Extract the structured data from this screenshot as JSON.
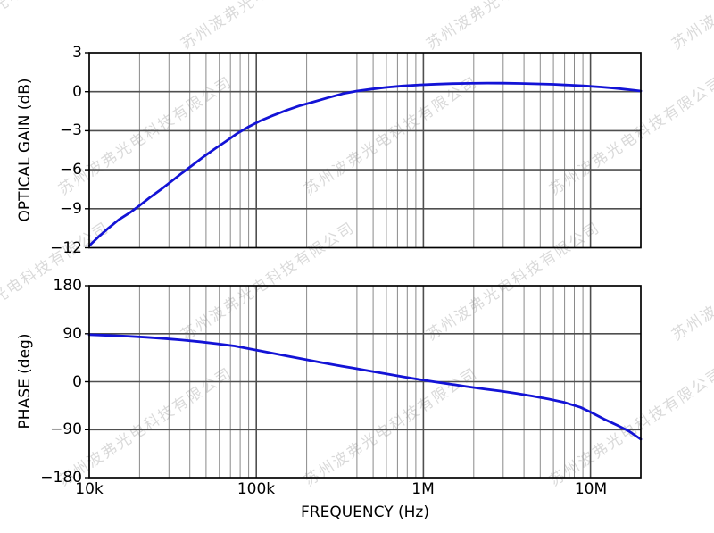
{
  "watermark": {
    "text": "苏州波弗光电科技有限公司",
    "color": "rgba(0,0,0,0.15)"
  },
  "colors": {
    "curve": "#1313d6",
    "grid_major": "#4f4f4f",
    "grid_minor": "#8a8a8a",
    "frame": "#000000",
    "background": "#ffffff"
  },
  "chart_data": [
    {
      "type": "line",
      "title": "",
      "xlabel": "FREQUENCY (Hz)",
      "ylabel": "OPTICAL GAIN (dB)",
      "x_scale": "log",
      "xlim": [
        10000,
        20000000
      ],
      "ylim": [
        -12,
        3
      ],
      "grid": true,
      "legend": "none",
      "yticks": {
        "values": [
          3,
          0,
          -3,
          -6,
          -9,
          -12
        ],
        "labels": [
          "3",
          "0",
          "−3",
          "−6",
          "−9",
          "−12"
        ]
      },
      "xticks": {
        "values": [
          10000,
          100000,
          1000000,
          10000000
        ],
        "labels": [
          "10k",
          "100k",
          "1M",
          "10M"
        ]
      },
      "series": [
        {
          "name": "optical-gain",
          "color": "#1313d6",
          "points": [
            [
              10000,
              -11.85
            ],
            [
              11500,
              -11.1
            ],
            [
              13000,
              -10.5
            ],
            [
              15000,
              -9.85
            ],
            [
              17500,
              -9.3
            ],
            [
              20000,
              -8.75
            ],
            [
              23000,
              -8.15
            ],
            [
              27000,
              -7.5
            ],
            [
              31000,
              -6.9
            ],
            [
              36000,
              -6.25
            ],
            [
              42000,
              -5.6
            ],
            [
              49000,
              -4.95
            ],
            [
              57000,
              -4.35
            ],
            [
              66000,
              -3.8
            ],
            [
              77000,
              -3.2
            ],
            [
              90000,
              -2.7
            ],
            [
              105000,
              -2.25
            ],
            [
              125000,
              -1.85
            ],
            [
              150000,
              -1.45
            ],
            [
              180000,
              -1.1
            ],
            [
              220000,
              -0.78
            ],
            [
              270000,
              -0.45
            ],
            [
              330000,
              -0.15
            ],
            [
              400000,
              0.05
            ],
            [
              490000,
              0.2
            ],
            [
              600000,
              0.33
            ],
            [
              750000,
              0.44
            ],
            [
              950000,
              0.52
            ],
            [
              1200000,
              0.58
            ],
            [
              1500000,
              0.62
            ],
            [
              1900000,
              0.64
            ],
            [
              2400000,
              0.66
            ],
            [
              3000000,
              0.65
            ],
            [
              3800000,
              0.63
            ],
            [
              4800000,
              0.6
            ],
            [
              6000000,
              0.56
            ],
            [
              7500000,
              0.5
            ],
            [
              9300000,
              0.44
            ],
            [
              11500000,
              0.36
            ],
            [
              14000000,
              0.27
            ],
            [
              17000000,
              0.15
            ],
            [
              20000000,
              0.05
            ]
          ]
        }
      ]
    },
    {
      "type": "line",
      "title": "",
      "xlabel": "FREQUENCY (Hz)",
      "ylabel": "PHASE (deg)",
      "x_scale": "log",
      "xlim": [
        10000,
        20000000
      ],
      "ylim": [
        -180,
        180
      ],
      "grid": true,
      "legend": "none",
      "yticks": {
        "values": [
          180,
          90,
          0,
          -90,
          -180
        ],
        "labels": [
          "180",
          "90",
          "0",
          "−90",
          "−180"
        ]
      },
      "xticks": {
        "values": [
          10000,
          100000,
          1000000,
          10000000
        ],
        "labels": [
          "10k",
          "100k",
          "1M",
          "10M"
        ]
      },
      "series": [
        {
          "name": "phase",
          "color": "#1313d6",
          "points": [
            [
              10000,
              88
            ],
            [
              13000,
              86.8
            ],
            [
              17000,
              85.2
            ],
            [
              22000,
              83.2
            ],
            [
              28000,
              80.8
            ],
            [
              36000,
              78
            ],
            [
              46000,
              74.8
            ],
            [
              58000,
              71.2
            ],
            [
              74000,
              67
            ],
            [
              95000,
              60.5
            ],
            [
              120000,
              54.5
            ],
            [
              150000,
              48.5
            ],
            [
              190000,
              42.5
            ],
            [
              240000,
              36.5
            ],
            [
              300000,
              31
            ],
            [
              380000,
              25.5
            ],
            [
              480000,
              20
            ],
            [
              600000,
              14.5
            ],
            [
              760000,
              9
            ],
            [
              950000,
              4
            ],
            [
              1150000,
              0
            ],
            [
              1450000,
              -4.5
            ],
            [
              1800000,
              -9
            ],
            [
              2300000,
              -13.5
            ],
            [
              2900000,
              -17.5
            ],
            [
              3600000,
              -22
            ],
            [
              4500000,
              -27
            ],
            [
              5600000,
              -32.5
            ],
            [
              7000000,
              -39
            ],
            [
              8700000,
              -48
            ],
            [
              10000000,
              -57
            ],
            [
              12000000,
              -70
            ],
            [
              14500000,
              -82
            ],
            [
              17000000,
              -93
            ],
            [
              20000000,
              -108
            ]
          ]
        }
      ]
    }
  ]
}
